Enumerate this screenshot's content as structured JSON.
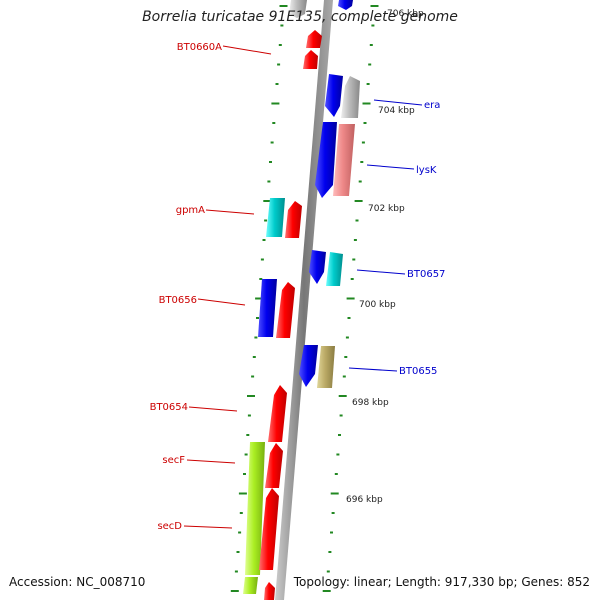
{
  "title": "Borrelia turicatae 91E135, complete genome",
  "accession": "Accession: NC_008710",
  "summary": "Topology: linear; Length: 917,330 bp; Genes: 852",
  "colors": {
    "forward_gene": "#ff0000",
    "reverse_gene": "#0000ee",
    "label_red": "#cc0000",
    "label_blue": "#0000cc",
    "cyan_gene": "#00cccc",
    "grey_gene": "#bbbbbb",
    "pink_gene": "#ee8888",
    "khaki_gene": "#bbaa66",
    "lime_gene": "#aaee22",
    "tick_green": "#228822",
    "backbone": "#888888"
  },
  "kbp_labels": [
    "706 kbp",
    "704 kbp",
    "702 kbp",
    "700 kbp",
    "698 kbp",
    "696 kbp"
  ],
  "gene_labels_left": [
    "BT0660A",
    "gpmA",
    "BT0656",
    "BT0654",
    "secF",
    "secD"
  ],
  "gene_labels_right": [
    "era",
    "lysK",
    "BT0657",
    "BT0655"
  ]
}
